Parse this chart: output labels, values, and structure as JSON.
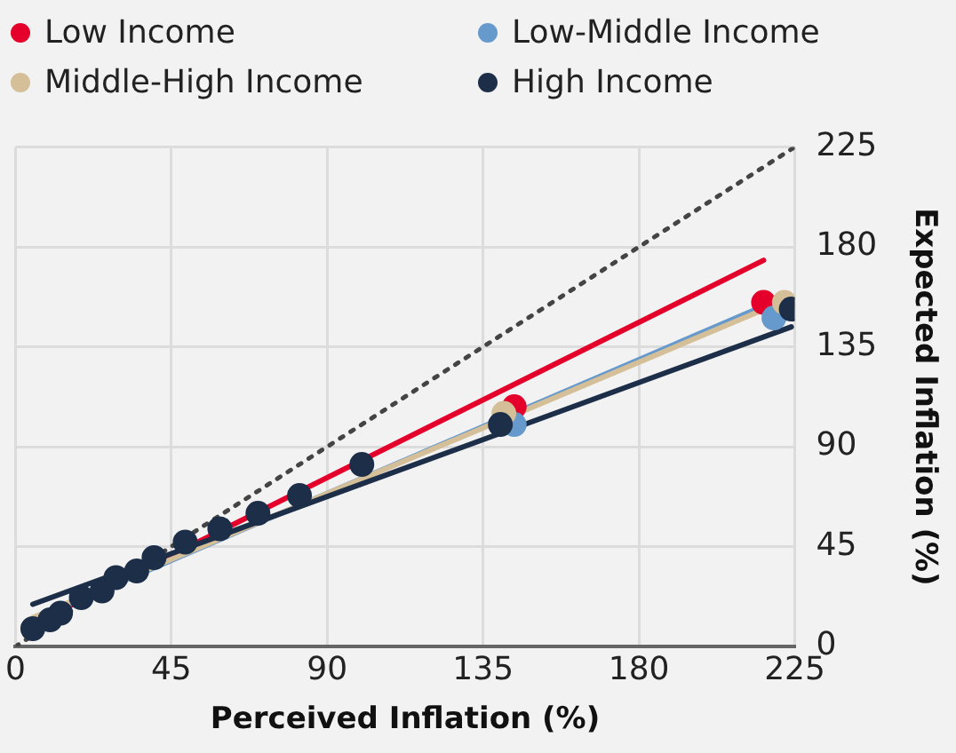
{
  "chart_data": {
    "type": "scatter",
    "xlabel": "Perceived Inflation (%)",
    "ylabel": "Expected Inflation (%)",
    "xlim": [
      0,
      225
    ],
    "xticks": [
      0,
      45,
      90,
      135,
      180,
      225
    ],
    "ylim": [
      0,
      225
    ],
    "yticks": [
      0,
      45,
      90,
      135,
      180,
      225
    ],
    "grid": true,
    "legend": "top",
    "marker": "circle",
    "x": [
      5,
      10,
      13,
      19,
      25,
      29,
      35,
      40,
      49,
      59,
      70,
      82,
      100,
      140,
      224
    ],
    "series": [
      {
        "name": "Low Income",
        "color": "#e4002b",
        "x": [
          144,
          216
        ],
        "values": [
          108,
          155
        ]
      },
      {
        "name": "Low-Middle Income",
        "color": "#6699cc",
        "x": [
          144,
          219
        ],
        "values": [
          100,
          148
        ]
      },
      {
        "name": "Middle-High Income",
        "color": "#d4bf98",
        "x": [
          141,
          222
        ],
        "values": [
          105,
          155
        ]
      },
      {
        "name": "High Income",
        "color": "#1c2e48",
        "values": [
          8,
          12,
          15,
          22,
          25,
          31,
          34,
          40,
          47,
          53,
          60,
          68,
          82,
          100,
          152
        ]
      },
      {
        "type": "line",
        "color": "#e4002b",
        "x": [
          5,
          216
        ],
        "values": [
          10,
          174
        ],
        "marker": "none"
      },
      {
        "type": "line",
        "color": "#6699cc",
        "x": [
          5,
          220
        ],
        "values": [
          12,
          156
        ],
        "marker": "none"
      },
      {
        "type": "line",
        "color": "#d4bf98",
        "x": [
          5,
          224
        ],
        "values": [
          13,
          157
        ],
        "marker": "none"
      },
      {
        "type": "line",
        "color": "#1c2e48",
        "x": [
          5,
          224
        ],
        "values": [
          19,
          144
        ],
        "marker": "none"
      },
      {
        "type": "line",
        "color": "#444444",
        "x": [
          0,
          225
        ],
        "values": [
          0,
          225
        ],
        "marker": "none",
        "line_style": "dotted"
      }
    ]
  }
}
